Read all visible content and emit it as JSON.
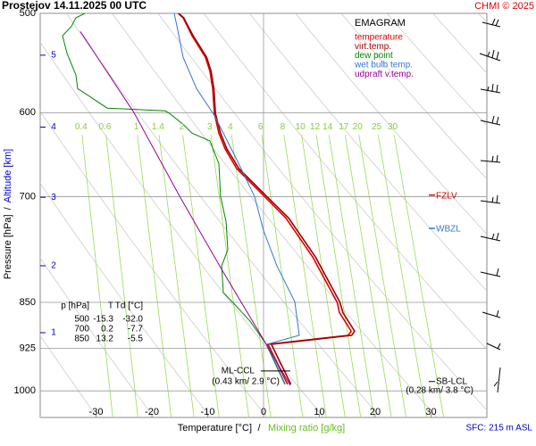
{
  "chart_data": {
    "type": "emagram",
    "title": "Prostejov    14.11.2025 00 UTC",
    "credit": "CHMI © 2025",
    "legend_title": "EMAGRAM",
    "x_label": "Temperature [°C]",
    "x_label_separator": "/",
    "x2_label": "Mixing ratio [g/kg]",
    "y_label": "Pressure [hPa]",
    "y_label_separator": "/",
    "y2_label": "Altitude [km]",
    "xlim": [
      -40,
      40
    ],
    "xticks": [
      -30,
      -20,
      -10,
      0,
      10,
      20,
      30
    ],
    "ylim": [
      500,
      1050
    ],
    "yticks": [
      500,
      600,
      700,
      850,
      925,
      1000
    ],
    "yscale": "log",
    "y2ticks": [
      1,
      2,
      3,
      4,
      5
    ],
    "mixing_ratio_lines": [
      0.4,
      0.6,
      1,
      1.4,
      2,
      3,
      4,
      6,
      8,
      10,
      12,
      14,
      17,
      20,
      25,
      30
    ],
    "series": [
      {
        "name": "temperature",
        "color": "#e00000",
        "x": [
          4.3,
          0.8,
          15.2,
          15.7,
          13.6,
          13.2,
          8.8,
          4,
          0.2,
          -4.8,
          -6.9,
          -8,
          -8.8,
          -9.1,
          -9.6,
          -10.4,
          -12.8,
          -14.4,
          -15.3
        ],
        "y": [
          988,
          918,
          903,
          896,
          866,
          850,
          782,
          728,
          700,
          665,
          641,
          623,
          601,
          574,
          556,
          542,
          521,
          504,
          500
        ]
      },
      {
        "name": "virt.temp.",
        "color": "#a00000",
        "x": [
          4.9,
          1.4,
          15.8,
          16.3,
          14.2,
          13.7,
          9.3,
          4.5,
          0.6,
          -4.4,
          -6.6,
          -7.7,
          -8.6,
          -8.9,
          -9.4,
          -10.2,
          -12.6,
          -14.3,
          -15.2
        ],
        "y": [
          988,
          918,
          903,
          896,
          866,
          850,
          782,
          728,
          700,
          665,
          641,
          623,
          601,
          574,
          556,
          542,
          521,
          504,
          500
        ]
      },
      {
        "name": "dew point",
        "color": "#008800",
        "x": [
          3.8,
          0.5,
          -2.4,
          -5.5,
          -7.2,
          -7.5,
          -6.4,
          -6.7,
          -7.7,
          -8,
          -9.6,
          -12.8,
          -14.4,
          -16.8,
          -17.6,
          -28,
          -32,
          -33.3,
          -33.6,
          -35.2,
          -36,
          -34.4,
          -33.6,
          -32
        ],
        "y": [
          988,
          918,
          880,
          850,
          835,
          795,
          772,
          733,
          700,
          659,
          632,
          623,
          613,
          601,
          598,
          595,
          579,
          574,
          560,
          538,
          521,
          512,
          504,
          500
        ]
      },
      {
        "name": "wet bulb temp.",
        "color": "#3377cc",
        "x": [
          3.9,
          0.6,
          6.4,
          5.6,
          2.4,
          0,
          -1.6,
          -4.8,
          -8.8,
          -12,
          -14.4,
          -15.5,
          -16
        ],
        "y": [
          988,
          918,
          903,
          849,
          795,
          745,
          700,
          654,
          603,
          574,
          542,
          512,
          500
        ]
      },
      {
        "name": "udpraft v.temp.",
        "color": "#990099",
        "x": [
          4.8,
          0.5,
          -7.5,
          -15,
          -23.2,
          -32.8
        ],
        "y": [
          990,
          918,
          800,
          700,
          600,
          517
        ]
      }
    ],
    "levels": [
      {
        "label": "FZLV",
        "pressure": 698,
        "color": "#e00000"
      },
      {
        "label": "WBZL",
        "pressure": 742,
        "color": "#3377cc"
      }
    ],
    "ml_ccl": {
      "label": "ML-CCL",
      "detail": "(0.43 km/ 2.9 °C)",
      "pressure": 964
    },
    "sb_lcl": {
      "label": "SB-LCL",
      "detail": "(0.28 km/ 3.8 °C)",
      "pressure": 983
    },
    "surface": "SFC: 215 m ASL",
    "table": {
      "header": [
        "p [hPa]",
        "T",
        "Td [°C]"
      ],
      "rows": [
        [
          "500",
          "-15.3",
          "-32.0"
        ],
        [
          "700",
          "0.2",
          "-7.7"
        ],
        [
          "850",
          "13.2",
          "-5.5"
        ]
      ]
    }
  }
}
